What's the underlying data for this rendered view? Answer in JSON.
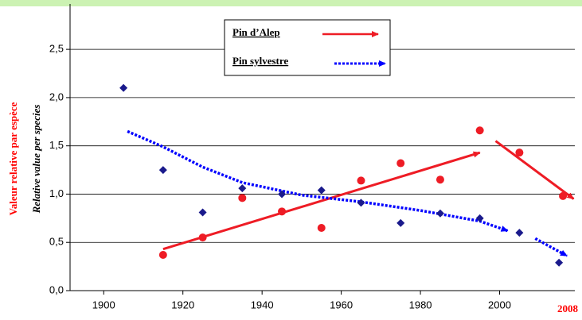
{
  "chart_data": {
    "type": "scatter",
    "ylabel": "Valeur relative par espèce",
    "ylabel2": "Relative value per species",
    "annotations": [
      {
        "text": "2008",
        "color": "#ff0000"
      }
    ],
    "xlim": [
      1891.5,
      2019
    ],
    "ylim": [
      0,
      2.97
    ],
    "xticks": [
      1900,
      1920,
      1940,
      1960,
      1980,
      2000
    ],
    "yticks": [
      {
        "value": 0,
        "label": "0,0"
      },
      {
        "value": 0.5,
        "label": "0,5"
      },
      {
        "value": 1,
        "label": "1,0"
      },
      {
        "value": 1.5,
        "label": "1,5"
      },
      {
        "value": 2,
        "label": "2,0"
      },
      {
        "value": 2.5,
        "label": "2,5"
      }
    ],
    "grid": true,
    "series": [
      {
        "name": "Pin d’Alep",
        "color": "#ee1c25",
        "marker": "circle",
        "x": [
          1915,
          1925,
          1935,
          1945,
          1955,
          1965,
          1975,
          1985,
          1995,
          2005,
          2016
        ],
        "values": [
          0.37,
          0.55,
          0.96,
          0.82,
          0.65,
          1.14,
          1.32,
          1.15,
          1.66,
          1.43,
          0.98
        ]
      },
      {
        "name": "Pin sylvestre",
        "color": "#1a1a8c",
        "marker": "diamond",
        "x": [
          1905,
          1915,
          1925,
          1935,
          1945,
          1955,
          1965,
          1975,
          1985,
          1995,
          2005,
          2015
        ],
        "values": [
          2.1,
          1.25,
          0.81,
          1.06,
          1.0,
          1.04,
          0.91,
          0.7,
          0.8,
          0.75,
          0.6,
          0.29
        ]
      }
    ],
    "trends": [
      {
        "color": "#ee1c25",
        "style": "solid",
        "x": [
          1915,
          1995
        ],
        "values": [
          0.43,
          1.43
        ]
      },
      {
        "color": "#ee1c25",
        "style": "solid",
        "x": [
          1999,
          2018.7
        ],
        "values": [
          1.55,
          0.95
        ]
      },
      {
        "color": "#0000ff",
        "style": "dotted",
        "x": [
          1906,
          1915,
          1925,
          1935,
          1950,
          1965,
          1980,
          1995,
          2002
        ],
        "values": [
          1.65,
          1.49,
          1.28,
          1.12,
          0.99,
          0.92,
          0.83,
          0.72,
          0.62
        ]
      },
      {
        "color": "#0000ff",
        "style": "dotted",
        "x": [
          2009,
          2017
        ],
        "values": [
          0.54,
          0.36
        ]
      }
    ]
  }
}
